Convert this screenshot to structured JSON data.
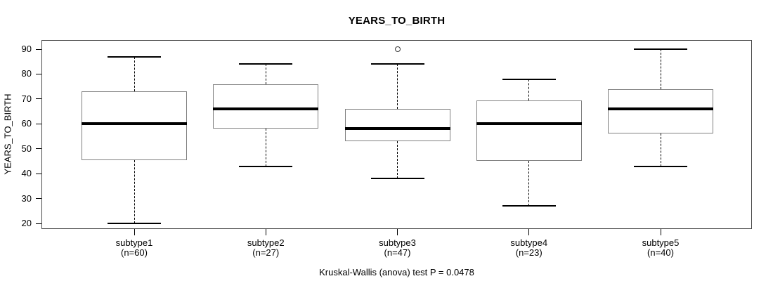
{
  "page": {
    "background": "#ffffff"
  },
  "chart_data": {
    "type": "boxplot",
    "title": "YEARS_TO_BIRTH",
    "ylabel": "YEARS_TO_BIRTH",
    "xlabel": "",
    "annotation": "Kruskal-Wallis (anova) test P = 0.0478",
    "ylim": [
      20,
      90
    ],
    "yticks": [
      20,
      30,
      40,
      50,
      60,
      70,
      80,
      90
    ],
    "grid": false,
    "legend": "none",
    "groups": [
      {
        "label": "subtype1",
        "sublabel": "(n=60)",
        "n": 60,
        "whisker_low": 20,
        "q1": 45.5,
        "median": 60,
        "q3": 73,
        "whisker_high": 87,
        "outliers": []
      },
      {
        "label": "subtype2",
        "sublabel": "(n=27)",
        "n": 27,
        "whisker_low": 43,
        "q1": 58,
        "median": 66,
        "q3": 76,
        "whisker_high": 84,
        "outliers": []
      },
      {
        "label": "subtype3",
        "sublabel": "(n=47)",
        "n": 47,
        "whisker_low": 38,
        "q1": 53,
        "median": 58,
        "q3": 66,
        "whisker_high": 84,
        "outliers": [
          90
        ]
      },
      {
        "label": "subtype4",
        "sublabel": "(n=23)",
        "n": 23,
        "whisker_low": 27,
        "q1": 45,
        "median": 60,
        "q3": 69.5,
        "whisker_high": 78,
        "outliers": []
      },
      {
        "label": "subtype5",
        "sublabel": "(n=40)",
        "n": 40,
        "whisker_low": 43,
        "q1": 56,
        "median": 66,
        "q3": 74,
        "whisker_high": 90,
        "outliers": []
      }
    ]
  },
  "colors": {
    "box_border": "#808080",
    "median_line": "#000000",
    "whisker_line": "#000000",
    "frame": "#4a4a4a",
    "text": "#000000",
    "background": "#ffffff"
  }
}
